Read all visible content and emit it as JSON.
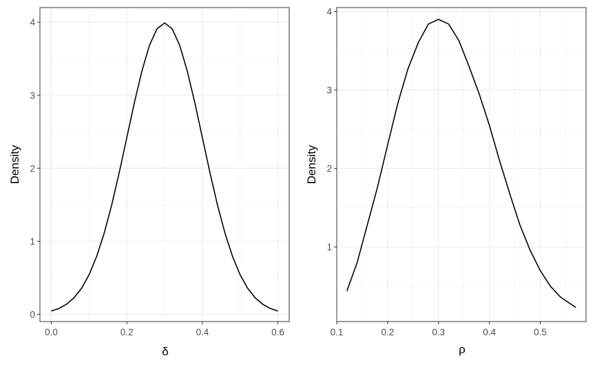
{
  "chart_data": [
    {
      "type": "line",
      "xlabel": "δ",
      "ylabel": "Density",
      "xlim": [
        -0.03,
        0.63
      ],
      "ylim": [
        -0.1,
        4.2
      ],
      "x_ticks": [
        {
          "value": 0.0,
          "label": "0.0"
        },
        {
          "value": 0.2,
          "label": "0.2"
        },
        {
          "value": 0.4,
          "label": "0.4"
        },
        {
          "value": 0.6,
          "label": "0.6"
        }
      ],
      "y_ticks": [
        {
          "value": 0,
          "label": "0"
        },
        {
          "value": 1,
          "label": "1"
        },
        {
          "value": 2,
          "label": "2"
        },
        {
          "value": 3,
          "label": "3"
        },
        {
          "value": 4,
          "label": "4"
        }
      ],
      "grid": true,
      "series": [
        {
          "x": [
            0.0,
            0.02,
            0.04,
            0.06,
            0.08,
            0.1,
            0.12,
            0.14,
            0.16,
            0.18,
            0.2,
            0.22,
            0.24,
            0.26,
            0.28,
            0.3,
            0.32,
            0.34,
            0.36,
            0.38,
            0.4,
            0.42,
            0.44,
            0.46,
            0.48,
            0.5,
            0.52,
            0.54,
            0.56,
            0.58,
            0.6
          ],
          "y": [
            0.044,
            0.079,
            0.136,
            0.224,
            0.355,
            0.54,
            0.79,
            1.109,
            1.497,
            1.942,
            2.42,
            2.897,
            3.332,
            3.683,
            3.91,
            3.989,
            3.91,
            3.683,
            3.332,
            2.897,
            2.42,
            1.942,
            1.497,
            1.109,
            0.79,
            0.54,
            0.355,
            0.224,
            0.136,
            0.079,
            0.044
          ]
        }
      ]
    },
    {
      "type": "line",
      "xlabel": "ρ",
      "ylabel": "Density",
      "xlim": [
        0.1,
        0.59
      ],
      "ylim": [
        0.05,
        4.05
      ],
      "x_ticks": [
        {
          "value": 0.1,
          "label": "0.1"
        },
        {
          "value": 0.2,
          "label": "0.2"
        },
        {
          "value": 0.3,
          "label": "0.3"
        },
        {
          "value": 0.4,
          "label": "0.4"
        },
        {
          "value": 0.5,
          "label": "0.5"
        }
      ],
      "y_ticks": [
        {
          "value": 1,
          "label": "1"
        },
        {
          "value": 2,
          "label": "2"
        },
        {
          "value": 3,
          "label": "3"
        },
        {
          "value": 4,
          "label": "4"
        }
      ],
      "grid": true,
      "series": [
        {
          "x": [
            0.12,
            0.14,
            0.16,
            0.18,
            0.2,
            0.22,
            0.24,
            0.26,
            0.28,
            0.3,
            0.32,
            0.34,
            0.36,
            0.38,
            0.4,
            0.42,
            0.44,
            0.46,
            0.48,
            0.5,
            0.52,
            0.54,
            0.57
          ],
          "y": [
            0.44,
            0.8,
            1.28,
            1.76,
            2.3,
            2.83,
            3.27,
            3.6,
            3.84,
            3.9,
            3.84,
            3.63,
            3.3,
            2.95,
            2.55,
            2.1,
            1.68,
            1.28,
            0.96,
            0.7,
            0.5,
            0.36,
            0.23
          ]
        }
      ]
    }
  ]
}
